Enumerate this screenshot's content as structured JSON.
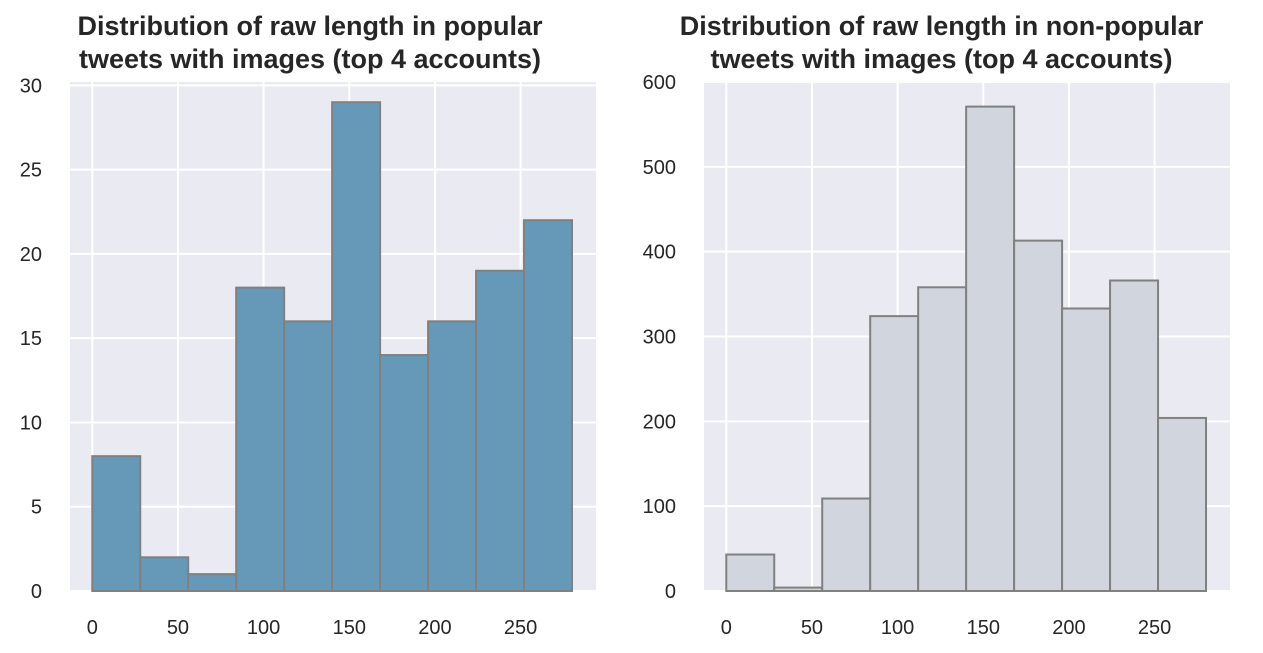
{
  "chart_data": [
    {
      "type": "bar",
      "title": "Distribution of raw length in popular\ntweets with images (top 4 accounts)",
      "xlabel": "",
      "ylabel": "",
      "bin_edges": [
        0,
        28,
        56,
        84,
        112,
        140,
        168,
        196,
        224,
        252,
        280
      ],
      "values": [
        8,
        2,
        1,
        18,
        16,
        29,
        14,
        16,
        19,
        22
      ],
      "xlim": [
        -13,
        294
      ],
      "ylim": [
        0,
        30.2
      ],
      "xticks": [
        0,
        50,
        100,
        150,
        200,
        250
      ],
      "yticks": [
        0,
        5,
        10,
        15,
        20,
        25,
        30
      ],
      "grid": true,
      "bar_color": "#6699b7",
      "edge_color": "#808080"
    },
    {
      "type": "bar",
      "title": "Distribution of raw length in non-popular\ntweets with images (top 4 accounts)",
      "xlabel": "",
      "ylabel": "",
      "bin_edges": [
        0,
        28,
        56,
        84,
        112,
        140,
        168,
        196,
        224,
        252,
        280
      ],
      "values": [
        43,
        4,
        109,
        324,
        358,
        571,
        413,
        333,
        366,
        204
      ],
      "xlim": [
        -13,
        294
      ],
      "ylim": [
        0,
        600
      ],
      "xticks": [
        0,
        50,
        100,
        150,
        200,
        250
      ],
      "yticks": [
        0,
        100,
        200,
        300,
        400,
        500,
        600
      ],
      "grid": true,
      "bar_color": "#d1d6de",
      "edge_color": "#808080"
    }
  ]
}
